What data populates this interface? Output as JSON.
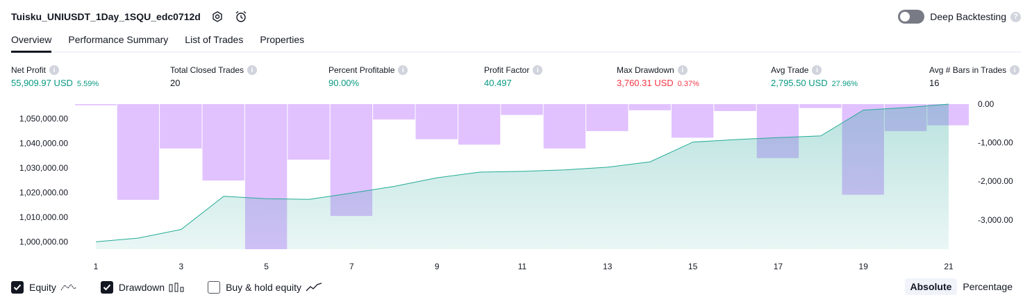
{
  "header": {
    "strategy_title": "Tuisku_UNIUSDT_1Day_1SQU_edc0712d",
    "deep_backtesting_label": "Deep Backtesting"
  },
  "tabs": [
    {
      "label": "Overview",
      "active": true
    },
    {
      "label": "Performance Summary",
      "active": false
    },
    {
      "label": "List of Trades",
      "active": false
    },
    {
      "label": "Properties",
      "active": false
    }
  ],
  "metrics": {
    "net_profit": {
      "label": "Net Profit",
      "value": "55,909.97 USD",
      "pct": "5.59%"
    },
    "total_closed_trades": {
      "label": "Total Closed Trades",
      "value": "20"
    },
    "percent_profitable": {
      "label": "Percent Profitable",
      "value": "90.00%"
    },
    "profit_factor": {
      "label": "Profit Factor",
      "value": "40.497"
    },
    "max_drawdown": {
      "label": "Max Drawdown",
      "value": "3,760.31 USD",
      "pct": "0.37%"
    },
    "avg_trade": {
      "label": "Avg Trade",
      "value": "2,795.50 USD",
      "pct": "27.96%"
    },
    "avg_bars": {
      "label": "Avg # Bars in Trades",
      "value": "16"
    }
  },
  "legend": {
    "equity": "Equity",
    "drawdown": "Drawdown",
    "buy_hold": "Buy & hold equity"
  },
  "modes": {
    "absolute": "Absolute",
    "percentage": "Percentage"
  },
  "colors": {
    "equity_line": "#22ab94",
    "equity_fill": "#26a69a",
    "drawdown_bar": "#e1c2ff",
    "positive": "#089981",
    "negative": "#f23645"
  },
  "chart_data": {
    "type": "area",
    "x": [
      1,
      2,
      3,
      4,
      5,
      6,
      7,
      8,
      9,
      10,
      11,
      12,
      13,
      14,
      15,
      16,
      17,
      18,
      19,
      20,
      21
    ],
    "x_tick_labels": [
      "1",
      "3",
      "5",
      "7",
      "9",
      "11",
      "13",
      "15",
      "17",
      "19",
      "21"
    ],
    "series": [
      {
        "axis": "left",
        "type": "area",
        "values": [
          1000000,
          1001500,
          1005000,
          1018500,
          1017500,
          1017200,
          1019800,
          1022500,
          1026000,
          1028300,
          1028600,
          1029200,
          1030300,
          1032500,
          1040500,
          1041500,
          1042300,
          1043000,
          1053500,
          1054500,
          1055910
        ]
      },
      {
        "axis": "right",
        "type": "bar",
        "values": [
          -30,
          -2480,
          -1150,
          -1980,
          -3760,
          -1440,
          -2900,
          -400,
          -910,
          -1050,
          -280,
          -1150,
          -700,
          -160,
          -870,
          -180,
          -1400,
          -100,
          -2350,
          -700,
          -550
        ]
      }
    ],
    "left_axis": {
      "ticks": [
        1000000,
        1010000,
        1020000,
        1030000,
        1040000,
        1050000
      ],
      "tick_labels": [
        "1,000,000.00",
        "1,010,000.00",
        "1,020,000.00",
        "1,030,000.00",
        "1,040,000.00",
        "1,050,000.00"
      ],
      "ylim": [
        997000,
        1055910
      ]
    },
    "right_axis": {
      "ticks": [
        0,
        -1000,
        -2000,
        -3000
      ],
      "tick_labels": [
        "0.00",
        "-1,000.00",
        "-2,000.00",
        "-3,000.00"
      ],
      "ylim": [
        -3760,
        0
      ]
    },
    "grid": false
  }
}
